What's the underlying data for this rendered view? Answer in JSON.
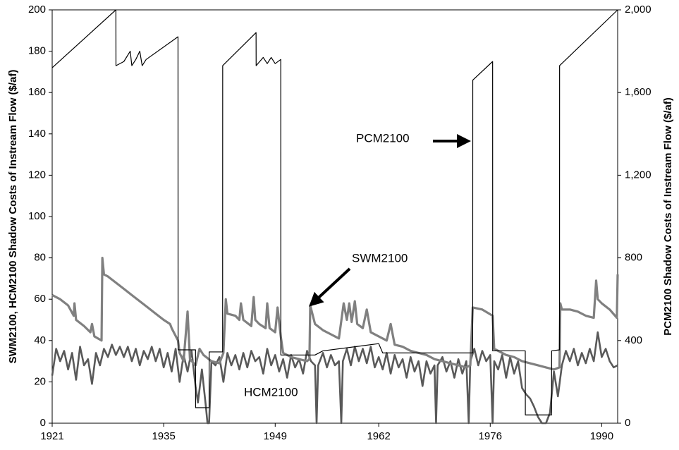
{
  "chart_data": {
    "type": "line",
    "y_label": "SWM2100, HCM2100 Shadow Costs of Instream Flow ($/af)",
    "y2_label": "PCM2100 Shadow Costs of Instream Flow ($/af)",
    "annotations": [
      "PCM2100",
      "SWM2100",
      "HCM2100"
    ],
    "xlim": [
      1921,
      1992
    ],
    "xticks": [
      1921,
      1935,
      1949,
      1962,
      1976,
      1990
    ],
    "ylim": [
      0,
      200
    ],
    "yticks": [
      0,
      20,
      40,
      60,
      80,
      100,
      120,
      140,
      160,
      180,
      200
    ],
    "y2lim": [
      0,
      2000
    ],
    "y2ticks": [
      0,
      400,
      800,
      {
        "value": 1200,
        "label": "1,200"
      },
      {
        "value": 1600,
        "label": "1,600"
      },
      {
        "value": 2000,
        "label": "2,000"
      }
    ],
    "series": [
      {
        "name": "PCM2100",
        "color": "#000000",
        "axis": "y2",
        "x": [
          1921,
          1929,
          1929.01,
          1930,
          1930.8,
          1931,
          1931.5,
          1932,
          1932.3,
          1932.8,
          1936.8,
          1936.81,
          1939,
          1939.01,
          1940.7,
          1940.71,
          1942.4,
          1942.41,
          1946.6,
          1946.61,
          1947.5,
          1948,
          1948.5,
          1949,
          1949.7,
          1949.71,
          1954,
          1955,
          1962,
          1962.5,
          1973.8,
          1973.81,
          1976.3,
          1976.31,
          1980.4,
          1980.41,
          1983.7,
          1983.71,
          1984.7,
          1984.71,
          1992
        ],
        "values": [
          1720,
          2000,
          1730,
          1750,
          1800,
          1730,
          1760,
          1800,
          1730,
          1760,
          1870,
          355,
          355,
          75,
          75,
          345,
          345,
          1730,
          1890,
          1730,
          1770,
          1740,
          1770,
          1740,
          1760,
          330,
          330,
          350,
          385,
          340,
          340,
          1660,
          1750,
          350,
          350,
          40,
          40,
          350,
          355,
          1730,
          2000
        ]
      },
      {
        "name": "SWM2100",
        "color": "#808080",
        "x": [
          1921,
          1922,
          1923,
          1923.7,
          1923.8,
          1924,
          1925,
          1925.8,
          1926,
          1926.3,
          1927.2,
          1927.3,
          1927.5,
          1928,
          1929,
          1930,
          1931,
          1932,
          1933,
          1934,
          1935,
          1935.8,
          1936,
          1936.8,
          1937,
          1937.5,
          1938,
          1938.3,
          1939,
          1939.5,
          1940,
          1941,
          1942,
          1942.5,
          1942.8,
          1943,
          1944,
          1944.5,
          1944.7,
          1945,
          1946,
          1946.3,
          1946.5,
          1947,
          1947.8,
          1948,
          1948.3,
          1949,
          1949.3,
          1949.7,
          1950,
          1951,
          1952,
          1953,
          1953.3,
          1953.4,
          1954,
          1955,
          1956,
          1956.5,
          1957,
          1957.6,
          1958,
          1958.3,
          1958.6,
          1959,
          1959.3,
          1960,
          1960.5,
          1961,
          1962,
          1963,
          1963.5,
          1964,
          1965,
          1966,
          1967,
          1968,
          1969,
          1970,
          1971,
          1972,
          1973,
          1973.5,
          1973.8,
          1975,
          1976.3,
          1976.5,
          1977,
          1978,
          1979,
          1980,
          1981,
          1982,
          1983,
          1984,
          1984.7,
          1984.8,
          1985,
          1986,
          1987,
          1988,
          1989,
          1989.3,
          1989.5,
          1990,
          1991,
          1991.9,
          1992
        ],
        "values": [
          62,
          60,
          57,
          52,
          58,
          50,
          47,
          44,
          48,
          42,
          40,
          80,
          72,
          71,
          68,
          65,
          62,
          59,
          56,
          53,
          50,
          48,
          46,
          40,
          34,
          30,
          54,
          31,
          28,
          36,
          33,
          30,
          29,
          34,
          60,
          53,
          52,
          50,
          58,
          50,
          47,
          61,
          50,
          48,
          46,
          58,
          46,
          44,
          56,
          42,
          34,
          32,
          31,
          30,
          31,
          57,
          48,
          45,
          43,
          42,
          41,
          58,
          50,
          58,
          49,
          59,
          48,
          46,
          55,
          44,
          42,
          40,
          48,
          38,
          37,
          35,
          34,
          33,
          31,
          30,
          29,
          28,
          27,
          28,
          56,
          55,
          52,
          36,
          35,
          33,
          32,
          30,
          29,
          28,
          27,
          26,
          27,
          58,
          55,
          55,
          54,
          52,
          51,
          69,
          60,
          58,
          55,
          51,
          72
        ]
      },
      {
        "name": "HCM2100",
        "color": "#595959",
        "x": [
          1921,
          1921.5,
          1922,
          1922.5,
          1923,
          1923.5,
          1924,
          1924.5,
          1925,
          1925.5,
          1926,
          1926.5,
          1927,
          1927.5,
          1928,
          1928.5,
          1929,
          1929.5,
          1930,
          1930.5,
          1931,
          1931.5,
          1932,
          1932.5,
          1933,
          1933.5,
          1934,
          1934.5,
          1935,
          1935.5,
          1936,
          1936.5,
          1937,
          1937.5,
          1938,
          1938.5,
          1939,
          1939.3,
          1939.8,
          1940.3,
          1940.5,
          1940.7,
          1941,
          1941.5,
          1942,
          1942.5,
          1943,
          1943.5,
          1944,
          1944.5,
          1945,
          1945.5,
          1946,
          1946.5,
          1947,
          1947.5,
          1948,
          1948.5,
          1949,
          1949.5,
          1950,
          1950.5,
          1951,
          1951.5,
          1952,
          1952.5,
          1953,
          1953.5,
          1954,
          1954.2,
          1954.4,
          1955,
          1955.5,
          1956,
          1956.5,
          1957,
          1957.3,
          1957.5,
          1958,
          1958.5,
          1959,
          1959.5,
          1960,
          1960.5,
          1961,
          1961.5,
          1962,
          1962.5,
          1963,
          1963.5,
          1964,
          1964.5,
          1965,
          1965.5,
          1966,
          1966.5,
          1967,
          1967.5,
          1968,
          1968.5,
          1969,
          1969.2,
          1969.4,
          1970,
          1970.5,
          1971,
          1971.5,
          1972,
          1972.5,
          1973,
          1973.3,
          1973.5,
          1974,
          1974.5,
          1975,
          1975.5,
          1976,
          1976.3,
          1976.5,
          1977,
          1977.5,
          1978,
          1978.5,
          1979,
          1979.5,
          1980,
          1980.5,
          1981,
          1981.5,
          1982,
          1982.5,
          1983,
          1983.5,
          1984,
          1984.5,
          1985,
          1985.5,
          1986,
          1986.5,
          1987,
          1987.5,
          1988,
          1988.5,
          1989,
          1989.5,
          1990,
          1990.5,
          1991,
          1991.5,
          1992
        ],
        "values": [
          23,
          36,
          30,
          35,
          26,
          34,
          21,
          37,
          28,
          31,
          19,
          34,
          28,
          36,
          32,
          38,
          33,
          37,
          32,
          37,
          30,
          36,
          28,
          35,
          31,
          37,
          30,
          36,
          27,
          34,
          25,
          36,
          20,
          33,
          25,
          35,
          18,
          10,
          26,
          8,
          0,
          0,
          30,
          28,
          32,
          20,
          34,
          28,
          33,
          26,
          34,
          27,
          35,
          30,
          32,
          24,
          36,
          28,
          33,
          25,
          31,
          22,
          33,
          27,
          31,
          24,
          35,
          30,
          28,
          0,
          28,
          34,
          27,
          33,
          28,
          30,
          0,
          30,
          36,
          28,
          37,
          30,
          36,
          29,
          37,
          27,
          32,
          26,
          34,
          24,
          33,
          27,
          31,
          22,
          32,
          25,
          30,
          18,
          30,
          24,
          28,
          0,
          28,
          32,
          25,
          30,
          22,
          31,
          24,
          30,
          0,
          30,
          36,
          28,
          35,
          30,
          33,
          0,
          30,
          26,
          33,
          22,
          32,
          24,
          30,
          17,
          14,
          12,
          8,
          3,
          0,
          0,
          5,
          25,
          13,
          28,
          35,
          30,
          36,
          28,
          34,
          29,
          36,
          30,
          44,
          32,
          36,
          30,
          27,
          28
        ]
      }
    ]
  }
}
